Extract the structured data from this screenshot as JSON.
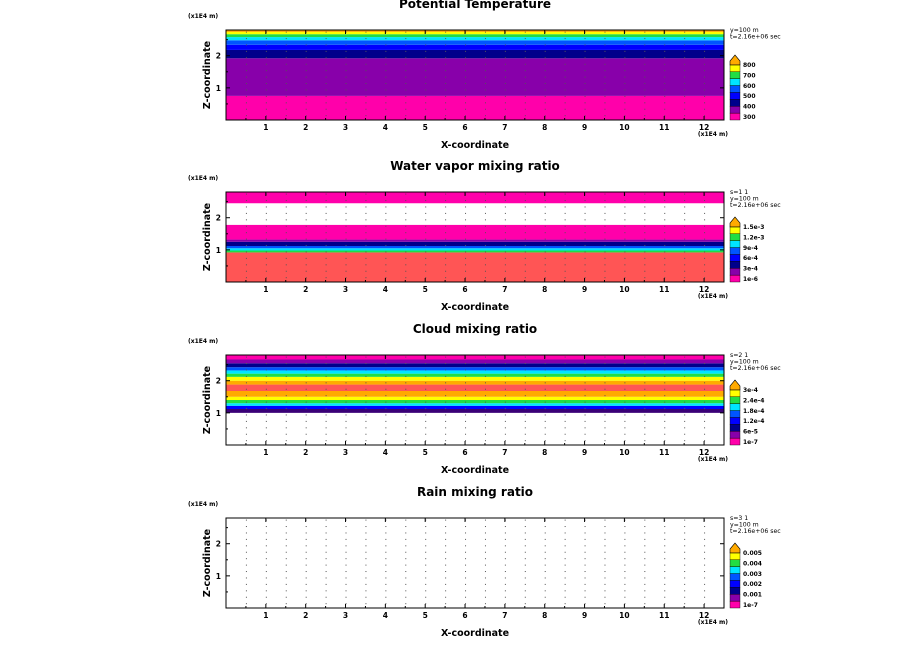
{
  "page": {
    "background": "#ffffff"
  },
  "palette": {
    "magenta": "#ff00aa",
    "purple": "#8800aa",
    "indigo": "#3a0077",
    "navy": "#00008b",
    "blue": "#0000ff",
    "blue2": "#0055ff",
    "cyan": "#00e5ff",
    "green": "#22dd44",
    "yellow": "#ffff00",
    "orange": "#ffaa00",
    "salmon": "#ff5555",
    "white": "#ffffff"
  },
  "chart_data": [
    {
      "type": "heatmap",
      "title": "Potential Temperature",
      "xlabel": "X-coordinate",
      "ylabel": "Z-coordinate",
      "x_unit": "(x1E4 m)",
      "y_unit": "(x1E4 m)",
      "xlim": [
        0,
        12.5
      ],
      "ylim": [
        0,
        2.8
      ],
      "x_ticks": [
        "1",
        "2",
        "3",
        "4",
        "5",
        "6",
        "7",
        "8",
        "9",
        "10",
        "11",
        "12"
      ],
      "y_ticks": [
        "1",
        "2"
      ],
      "info": [
        "y=100 m",
        "t=2.16e+06 sec"
      ],
      "colorbar": {
        "labels": [
          "300",
          "400",
          "500",
          "600",
          "700",
          "800"
        ],
        "n_colors": 9
      },
      "bands": [
        {
          "z0": 0.0,
          "z1": 0.75,
          "color": "magenta"
        },
        {
          "z0": 0.75,
          "z1": 1.92,
          "color": "purple"
        },
        {
          "z0": 1.92,
          "z1": 2.18,
          "color": "navy"
        },
        {
          "z0": 2.18,
          "z1": 2.34,
          "color": "blue"
        },
        {
          "z0": 2.34,
          "z1": 2.48,
          "color": "blue2"
        },
        {
          "z0": 2.48,
          "z1": 2.58,
          "color": "cyan"
        },
        {
          "z0": 2.58,
          "z1": 2.67,
          "color": "green"
        },
        {
          "z0": 2.67,
          "z1": 2.74,
          "color": "yellow"
        },
        {
          "z0": 2.74,
          "z1": 2.8,
          "color": "orange"
        }
      ]
    },
    {
      "type": "heatmap",
      "title": "Water vapor mixing ratio",
      "xlabel": "X-coordinate",
      "ylabel": "Z-coordinate",
      "x_unit": "(x1E4 m)",
      "y_unit": "(x1E4 m)",
      "xlim": [
        0,
        12.5
      ],
      "ylim": [
        0,
        2.8
      ],
      "x_ticks": [
        "1",
        "2",
        "3",
        "4",
        "5",
        "6",
        "7",
        "8",
        "9",
        "10",
        "11",
        "12"
      ],
      "y_ticks": [
        "1",
        "2"
      ],
      "info": [
        "s=1 1",
        "y=100 m",
        "t=2.16e+06 sec"
      ],
      "colorbar": {
        "labels": [
          "1e-6",
          "3e-4",
          "6e-4",
          "9e-4",
          "1.2e-3",
          "1.5e-3"
        ],
        "n_colors": 9
      },
      "bands": [
        {
          "z0": 0.0,
          "z1": 0.92,
          "color": "salmon"
        },
        {
          "z0": 0.92,
          "z1": 0.98,
          "color": "green"
        },
        {
          "z0": 0.98,
          "z1": 1.05,
          "color": "cyan"
        },
        {
          "z0": 1.05,
          "z1": 1.12,
          "color": "blue2"
        },
        {
          "z0": 1.12,
          "z1": 1.25,
          "color": "navy"
        },
        {
          "z0": 1.25,
          "z1": 1.32,
          "color": "purple"
        },
        {
          "z0": 1.32,
          "z1": 1.78,
          "color": "magenta"
        },
        {
          "z0": 1.78,
          "z1": 2.45,
          "color": "white"
        },
        {
          "z0": 2.45,
          "z1": 2.8,
          "color": "magenta"
        }
      ]
    },
    {
      "type": "heatmap",
      "title": "Cloud mixing ratio",
      "xlabel": "X-coordinate",
      "ylabel": "Z-coordinate",
      "x_unit": "(x1E4 m)",
      "y_unit": "(x1E4 m)",
      "xlim": [
        0,
        12.5
      ],
      "ylim": [
        0,
        2.8
      ],
      "x_ticks": [
        "1",
        "2",
        "3",
        "4",
        "5",
        "6",
        "7",
        "8",
        "9",
        "10",
        "11",
        "12"
      ],
      "y_ticks": [
        "1",
        "2"
      ],
      "info": [
        "s=2 1",
        "y=100 m",
        "t=2.16e+06 sec"
      ],
      "colorbar": {
        "labels": [
          "1e-7",
          "6e-5",
          "1.2e-4",
          "1.8e-4",
          "2.4e-4",
          "3e-4"
        ],
        "n_colors": 9
      },
      "bands": [
        {
          "z0": 0.0,
          "z1": 1.0,
          "color": "white"
        },
        {
          "z0": 1.0,
          "z1": 1.12,
          "color": "indigo"
        },
        {
          "z0": 1.12,
          "z1": 1.22,
          "color": "blue"
        },
        {
          "z0": 1.22,
          "z1": 1.3,
          "color": "cyan"
        },
        {
          "z0": 1.3,
          "z1": 1.4,
          "color": "green"
        },
        {
          "z0": 1.4,
          "z1": 1.5,
          "color": "yellow"
        },
        {
          "z0": 1.5,
          "z1": 1.68,
          "color": "orange"
        },
        {
          "z0": 1.68,
          "z1": 1.88,
          "color": "salmon"
        },
        {
          "z0": 1.88,
          "z1": 2.0,
          "color": "orange"
        },
        {
          "z0": 2.0,
          "z1": 2.12,
          "color": "yellow"
        },
        {
          "z0": 2.12,
          "z1": 2.22,
          "color": "green"
        },
        {
          "z0": 2.22,
          "z1": 2.32,
          "color": "cyan"
        },
        {
          "z0": 2.32,
          "z1": 2.42,
          "color": "blue2"
        },
        {
          "z0": 2.42,
          "z1": 2.54,
          "color": "navy"
        },
        {
          "z0": 2.54,
          "z1": 2.66,
          "color": "purple"
        },
        {
          "z0": 2.66,
          "z1": 2.8,
          "color": "magenta"
        }
      ]
    },
    {
      "type": "heatmap",
      "title": "Rain mixing ratio",
      "xlabel": "X-coordinate",
      "ylabel": "Z-coordinate",
      "x_unit": "(x1E4 m)",
      "y_unit": "(x1E4 m)",
      "xlim": [
        0,
        12.5
      ],
      "ylim": [
        0,
        2.8
      ],
      "x_ticks": [
        "1",
        "2",
        "3",
        "4",
        "5",
        "6",
        "7",
        "8",
        "9",
        "10",
        "11",
        "12"
      ],
      "y_ticks": [
        "1",
        "2"
      ],
      "info": [
        "s=3 1",
        "y=100 m",
        "t=2.16e+06 sec"
      ],
      "colorbar": {
        "labels": [
          "1e-7",
          "0.001",
          "0.002",
          "0.003",
          "0.004",
          "0.005"
        ],
        "n_colors": 9
      },
      "bands": []
    }
  ],
  "colorbar_colors": [
    "magenta",
    "purple",
    "navy",
    "blue",
    "blue2",
    "cyan",
    "green",
    "yellow",
    "orange"
  ]
}
